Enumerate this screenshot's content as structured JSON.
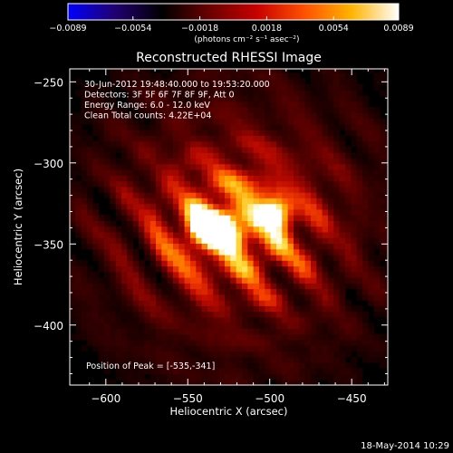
{
  "chart_data": {
    "type": "heatmap",
    "title": "Reconstructed RHESSI Image",
    "xlabel": "Heliocentric X (arcsec)",
    "ylabel": "Heliocentric Y (arcsec)",
    "xlim": [
      -622,
      -428
    ],
    "ylim": [
      -437,
      -242
    ],
    "xticks": [
      -600,
      -550,
      -500,
      -450
    ],
    "yticks": [
      -250,
      -300,
      -350,
      -400
    ],
    "xtick_labels": [
      "−600",
      "−550",
      "−500",
      "−450"
    ],
    "ytick_labels": [
      "−250",
      "−300",
      "−350",
      "−400"
    ],
    "colorbar": {
      "min": -0.0089,
      "max": 0.0089,
      "ticks": [
        -0.0089,
        -0.0054,
        -0.0018,
        0.0018,
        0.0054,
        0.0089
      ],
      "tick_labels": [
        "−0.0089",
        "−0.0054",
        "−0.0018",
        "0.0018",
        "0.0054",
        "0.0089"
      ],
      "unit_label": "(photons cm⁻² s⁻¹ asec⁻²)",
      "colors": [
        "#0000ff",
        "#200070",
        "#000000",
        "#6a0000",
        "#c80000",
        "#ff5000",
        "#ffb400",
        "#ffffff"
      ]
    },
    "annotations": [
      "30-Jun-2012 19:48:40.000 to 19:53:20.000",
      "Detectors: 3F 5F 6F 7F 8F 9F, Att 0",
      "Energy Range: 6.0 - 12.0 keV",
      "Clean     Total counts: 4.22E+04"
    ],
    "peak_label": "Position of Peak = [-535,-341]",
    "sources": [
      {
        "x": -535,
        "y": -341,
        "peak": 0.0089
      },
      {
        "x": -497,
        "y": -331,
        "peak": 0.0058
      }
    ],
    "grid": false,
    "legend": "colorbar-top"
  },
  "footer": {
    "date": "18-May-2014 10:29"
  }
}
